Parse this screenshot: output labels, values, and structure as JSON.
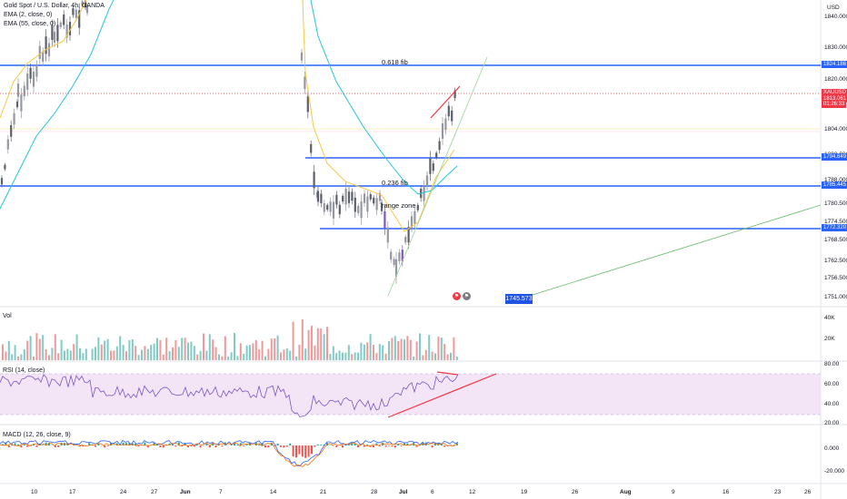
{
  "legend": {
    "symbol": "Gold Spot / U.S. Dollar, 4h, OANDA",
    "ema1": "EMA (2, close, 0)",
    "ema2": "EMA (55, close, 0)"
  },
  "price_axis": {
    "currency": "USD",
    "ticks": [
      "1840.000",
      "1830.000",
      "1820.000",
      "1804.000",
      "1800.000",
      "1788.000",
      "1780.500",
      "1774.500",
      "1768.500",
      "1762.500",
      "1756.500",
      "1751.000"
    ]
  },
  "price_tags": [
    {
      "label": "1824.186",
      "color": "#2962ff"
    },
    {
      "label": "XAUUSD",
      "color": "#f23645"
    },
    {
      "label": "1813.061",
      "color": "#f23645"
    },
    {
      "label": "01:26:33",
      "color": "#f23645"
    },
    {
      "label": "1794.649",
      "color": "#2962ff"
    },
    {
      "label": "1785.445",
      "color": "#2962ff"
    },
    {
      "label": "1772.320",
      "color": "#2962ff"
    }
  ],
  "annotations": {
    "fib_618": "0.618 fib",
    "fib_236": "0.236 fib",
    "range_zone": "range zone",
    "target": "1745.573"
  },
  "vol_pane": {
    "label": "Vol",
    "ticks": [
      "40K",
      "20K"
    ]
  },
  "rsi_pane": {
    "label": "RSI (14, close)",
    "ticks": [
      "80.00",
      "60.00",
      "40.00",
      "20.00"
    ]
  },
  "macd_pane": {
    "label": "MACD (12, 26, close, 9)",
    "ticks": [
      "0.000",
      "-20.000"
    ]
  },
  "time_axis": {
    "labels": [
      "10",
      "17",
      "24",
      "27",
      "Jun",
      "7",
      "14",
      "21",
      "28",
      "Jul",
      "6",
      "12",
      "19",
      "26",
      "Aug",
      "9",
      "16",
      "23",
      "26"
    ]
  },
  "chart_data": {
    "type": "candlestick",
    "title": "Gold Spot / U.S. Dollar, 4h, OANDA",
    "horizontal_levels": [
      1824.186,
      1794.649,
      1785.445,
      1772.32
    ],
    "last_price": 1813.061,
    "projection_target": 1745.573,
    "ylim": [
      1748,
      1845
    ],
    "series_approx": [
      {
        "name": "EMA (2, close, 0)",
        "color": "#f7c744"
      },
      {
        "name": "EMA (55, close, 0)",
        "color": "#26c6da"
      }
    ],
    "rsi_bands": [
      70,
      30
    ]
  },
  "colors": {
    "up": "#787b86",
    "down": "#7e57c2",
    "level": "#2962ff",
    "trend_red": "#f23645",
    "ema_fast": "#f7c744",
    "ema_slow": "#26c6da",
    "projection": "#66bb6a"
  }
}
